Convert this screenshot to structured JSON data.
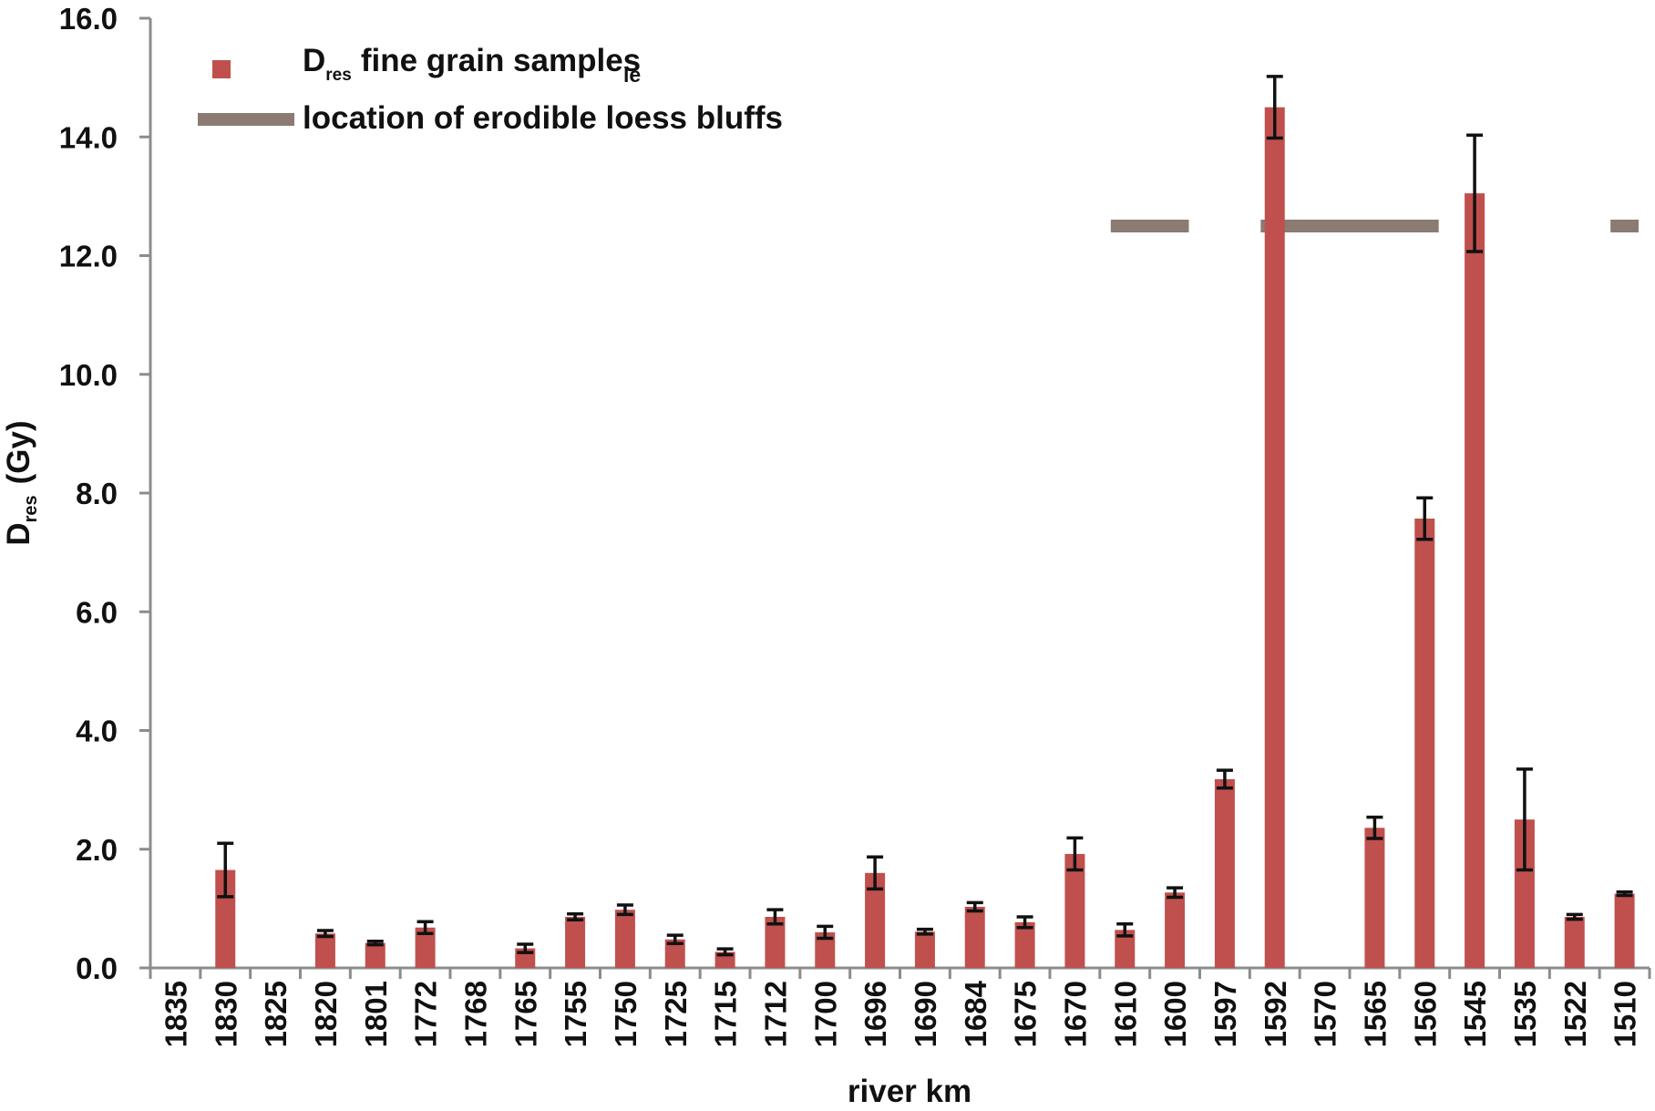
{
  "chart_data": {
    "type": "bar",
    "xlabel": "river km",
    "ylabel": "D",
    "ylabel_subscript": "res",
    "ylabel_unit": "(Gy)",
    "ylim": [
      0,
      16
    ],
    "yticks": [
      "0.0",
      "2.0",
      "4.0",
      "6.0",
      "8.0",
      "10.0",
      "12.0",
      "14.0",
      "16.0"
    ],
    "grid": false,
    "legend_position": "top-left",
    "categories": [
      "1835",
      "1830",
      "1825",
      "1820",
      "1801",
      "1772",
      "1768",
      "1765",
      "1755",
      "1750",
      "1725",
      "1715",
      "1712",
      "1700",
      "1696",
      "1690",
      "1684",
      "1675",
      "1670",
      "1610",
      "1600",
      "1597",
      "1592",
      "1570",
      "1565",
      "1560",
      "1545",
      "1535",
      "1522",
      "1510"
    ],
    "series": [
      {
        "name": "fine grain samples",
        "name_prefix": "D",
        "name_subscript": "res",
        "stray_mark": "le",
        "color": "#c0504d",
        "values": [
          null,
          1.65,
          null,
          0.58,
          0.42,
          0.68,
          null,
          0.33,
          0.86,
          0.98,
          0.48,
          0.27,
          0.86,
          0.6,
          1.6,
          0.61,
          1.03,
          0.77,
          1.92,
          0.64,
          1.27,
          3.18,
          14.5,
          null,
          2.36,
          7.57,
          13.05,
          2.5,
          0.86,
          1.25
        ],
        "errors": [
          null,
          0.45,
          null,
          0.05,
          0.03,
          0.1,
          null,
          0.07,
          0.05,
          0.08,
          0.07,
          0.05,
          0.12,
          0.1,
          0.27,
          0.04,
          0.07,
          0.09,
          0.27,
          0.1,
          0.08,
          0.15,
          0.52,
          null,
          0.18,
          0.35,
          0.98,
          0.85,
          0.04,
          0.03
        ]
      }
    ],
    "bluffs": {
      "name": "location of erodible loess bluffs",
      "color": "#8b7b73",
      "y": 12.5,
      "ranges": [
        [
          "1610",
          "1600"
        ],
        [
          "1592",
          "1560"
        ],
        [
          "1510",
          "1510"
        ]
      ]
    }
  }
}
